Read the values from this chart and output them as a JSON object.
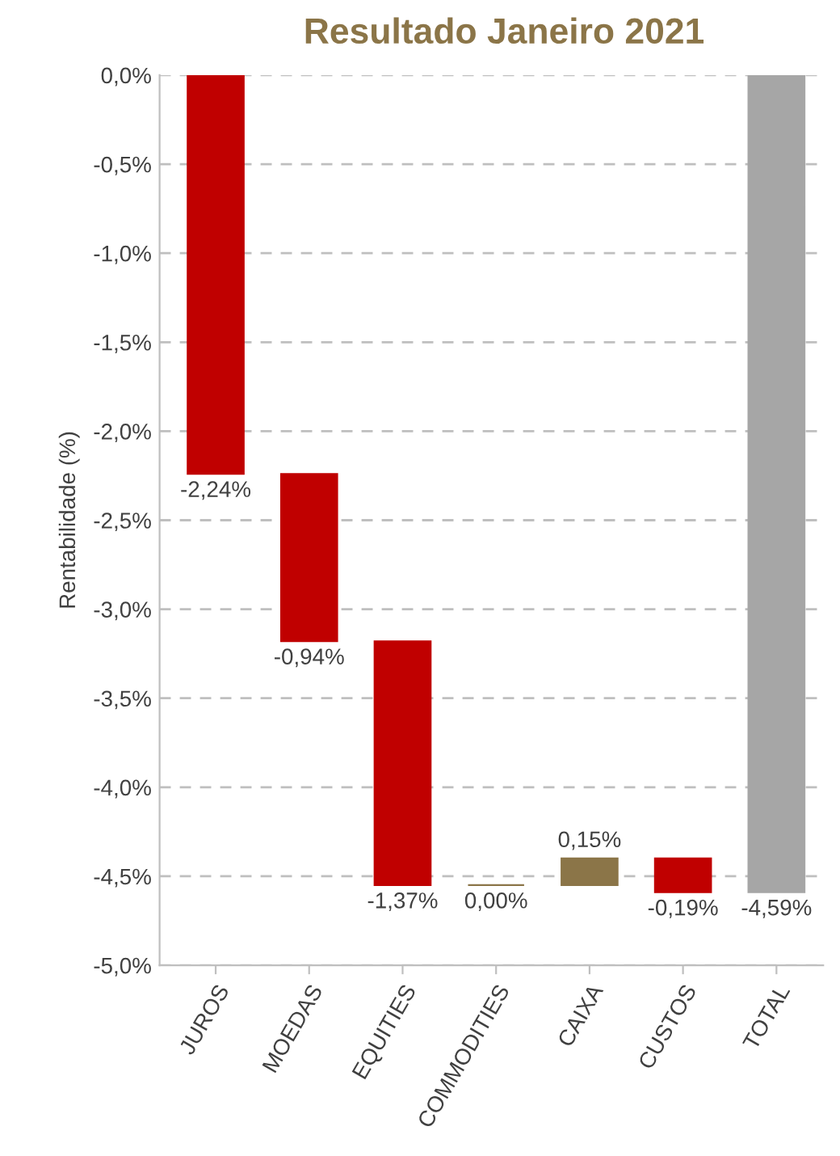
{
  "chart_data": {
    "type": "bar",
    "title": "Resultado Janeiro 2021",
    "ylabel": "Rentabilidade (%)",
    "categories": [
      "JUROS",
      "MOEDAS",
      "EQUITIES",
      "COMMODITIES",
      "CAIXA",
      "CUSTOS",
      "TOTAL"
    ],
    "values": [
      -2.24,
      -0.94,
      -1.37,
      0.0,
      0.15,
      -0.19,
      -4.59
    ],
    "base": [
      0,
      -2.24,
      -3.18,
      -4.55,
      -4.55,
      -4.4,
      0
    ],
    "colors": [
      "#c00000",
      "#c00000",
      "#c00000",
      "#8b7548",
      "#8b7548",
      "#c00000",
      "#a6a6a6"
    ],
    "value_labels": [
      "-2,24%",
      "-0,94%",
      "-1,37%",
      "0,00%",
      "0,15%",
      "-0,19%",
      "-4,59%"
    ],
    "ylim": [
      -5,
      0
    ],
    "yticks": [
      {
        "value": 0,
        "label": "0,0%"
      },
      {
        "value": -0.5,
        "label": "-0,5%"
      },
      {
        "value": -1,
        "label": "-1,0%"
      },
      {
        "value": -1.5,
        "label": "-1,5%"
      },
      {
        "value": -2,
        "label": "-2,0%"
      },
      {
        "value": -2.5,
        "label": "-2,5%"
      },
      {
        "value": -3,
        "label": "-3,0%"
      },
      {
        "value": -3.5,
        "label": "-3,5%"
      },
      {
        "value": -4,
        "label": "-4,0%"
      },
      {
        "value": -4.5,
        "label": "-4,5%"
      },
      {
        "value": -5,
        "label": "-5,0%"
      }
    ],
    "grid": "y",
    "legend": false
  }
}
